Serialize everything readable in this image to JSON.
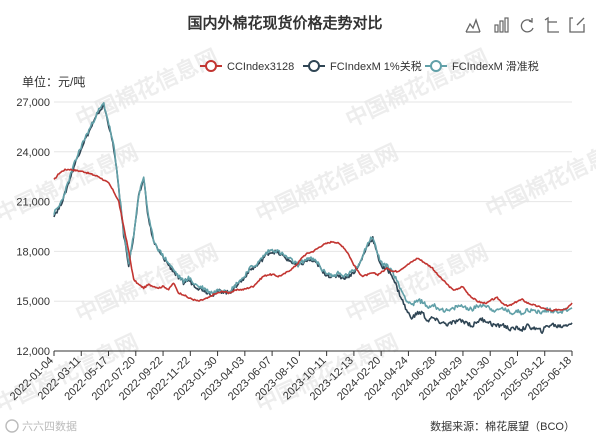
{
  "toolbar": {
    "icons": [
      "line-chart-icon",
      "bar-chart-icon",
      "refresh-icon",
      "zoom-icon",
      "save-icon"
    ]
  },
  "footer": {
    "source": "数据来源：棉花展望（BCO）",
    "bottom_left_logo": "六六四数据"
  },
  "watermark": {
    "text": "中国棉花信息网",
    "url": "www.cottonchina.org"
  },
  "colors": {
    "cc": "#c23531",
    "fc1": "#2f4554",
    "fcs": "#61a0a8"
  },
  "chart_data": {
    "type": "line",
    "title": "国内外棉花现货价格走势对比",
    "ylabel": "单位：元/吨",
    "ylim": [
      12000,
      27000
    ],
    "yticks": [
      "12,000",
      "15,000",
      "18,000",
      "21,000",
      "24,000",
      "27,000"
    ],
    "ytick_values": [
      12000,
      15000,
      18000,
      21000,
      24000,
      27000
    ],
    "grid": true,
    "legend_position": "top-right",
    "xticks": [
      "2022-01-04",
      "2022-03-11",
      "2022-05-17",
      "2022-07-20",
      "2022-09-22",
      "2022-11-22",
      "2023-01-30",
      "2023-04-03",
      "2023-06-07",
      "2023-08-10",
      "2023-10-11",
      "2023-12-13",
      "2024-02-20",
      "2024-04-24",
      "2024-06-28",
      "2024-08-29",
      "2024-10-30",
      "2025-01-02",
      "2025-03-12",
      "2025-06-18"
    ],
    "series": [
      {
        "name": "CCIndex3128",
        "color": "#c23531",
        "values": [
          22300,
          22700,
          22900,
          22950,
          22900,
          22850,
          22800,
          22700,
          22600,
          22500,
          22300,
          22100,
          21600,
          21000,
          19500,
          18000,
          16300,
          16000,
          15800,
          16000,
          15900,
          15800,
          15900,
          15700,
          16100,
          15500,
          15400,
          15200,
          15100,
          15000,
          15100,
          15200,
          15400,
          15500,
          15600,
          15500,
          15600,
          15700,
          15700,
          15800,
          15900,
          16200,
          16500,
          16600,
          16600,
          16500,
          16600,
          16800,
          17000,
          17300,
          17700,
          17900,
          18000,
          18200,
          18400,
          18500,
          18600,
          18500,
          18300,
          17900,
          17300,
          16800,
          16500,
          16600,
          16700,
          16600,
          16800,
          17000,
          16800,
          16800,
          17000,
          17200,
          17400,
          17600,
          17400,
          17200,
          17000,
          16600,
          16300,
          16000,
          15700,
          15700,
          15900,
          15500,
          15200,
          15000,
          14900,
          14900,
          15100,
          15200,
          14900,
          14700,
          14800,
          15000,
          15100,
          14900,
          14800,
          14700,
          14600,
          14500,
          14400,
          14500,
          14500,
          14600,
          14900
        ]
      },
      {
        "name": "FCIndexM 1%关税",
        "color": "#2f4554",
        "values": [
          20200,
          20600,
          21300,
          22200,
          23100,
          23900,
          24600,
          25200,
          25800,
          26400,
          26800,
          25600,
          24200,
          21800,
          19000,
          17200,
          18900,
          21300,
          22400,
          19900,
          18600,
          18000,
          17600,
          17200,
          16800,
          16400,
          16100,
          16300,
          16000,
          15800,
          15700,
          15500,
          15400,
          15600,
          15600,
          15500,
          15700,
          16100,
          16300,
          16800,
          17000,
          17200,
          17600,
          17900,
          18000,
          17900,
          17700,
          17500,
          17300,
          17100,
          17300,
          17500,
          17400,
          17200,
          16700,
          16600,
          16400,
          16600,
          16400,
          16500,
          16700,
          17000,
          17700,
          18400,
          18800,
          17700,
          17000,
          16900,
          16500,
          15700,
          15000,
          14300,
          14000,
          14300,
          14300,
          13800,
          14000,
          13800,
          13700,
          13600,
          13700,
          13800,
          13800,
          13700,
          13500,
          13800,
          13900,
          13800,
          13600,
          13500,
          13600,
          13400,
          13300,
          13400,
          13300,
          13500,
          13400,
          13300,
          13200,
          13500,
          13600,
          13500,
          13500,
          13600,
          13700
        ]
      },
      {
        "name": "FCIndexM 滑准税",
        "color": "#61a0a8",
        "values": [
          20300,
          20700,
          21400,
          22300,
          23200,
          24000,
          24700,
          25300,
          25900,
          26500,
          26900,
          25700,
          24300,
          21900,
          19100,
          17300,
          19000,
          21400,
          22500,
          20000,
          18700,
          18100,
          17700,
          17300,
          16900,
          16500,
          16200,
          16400,
          16100,
          15900,
          15800,
          15600,
          15500,
          15700,
          15700,
          15600,
          15800,
          16200,
          16400,
          16900,
          17100,
          17300,
          17700,
          18000,
          18100,
          18000,
          17800,
          17600,
          17400,
          17200,
          17400,
          17600,
          17500,
          17300,
          16800,
          16700,
          16500,
          16700,
          16500,
          16600,
          16800,
          17100,
          17800,
          18500,
          18900,
          17800,
          17200,
          17100,
          16800,
          16100,
          15500,
          15000,
          14800,
          15000,
          15000,
          14600,
          14800,
          14600,
          14500,
          14400,
          14500,
          14700,
          14700,
          14600,
          14500,
          14700,
          14800,
          14700,
          14500,
          14400,
          14600,
          14400,
          14300,
          14400,
          14300,
          14500,
          14400,
          14400,
          14300,
          14500,
          14400,
          14400,
          14400,
          14500,
          14600
        ]
      }
    ]
  }
}
